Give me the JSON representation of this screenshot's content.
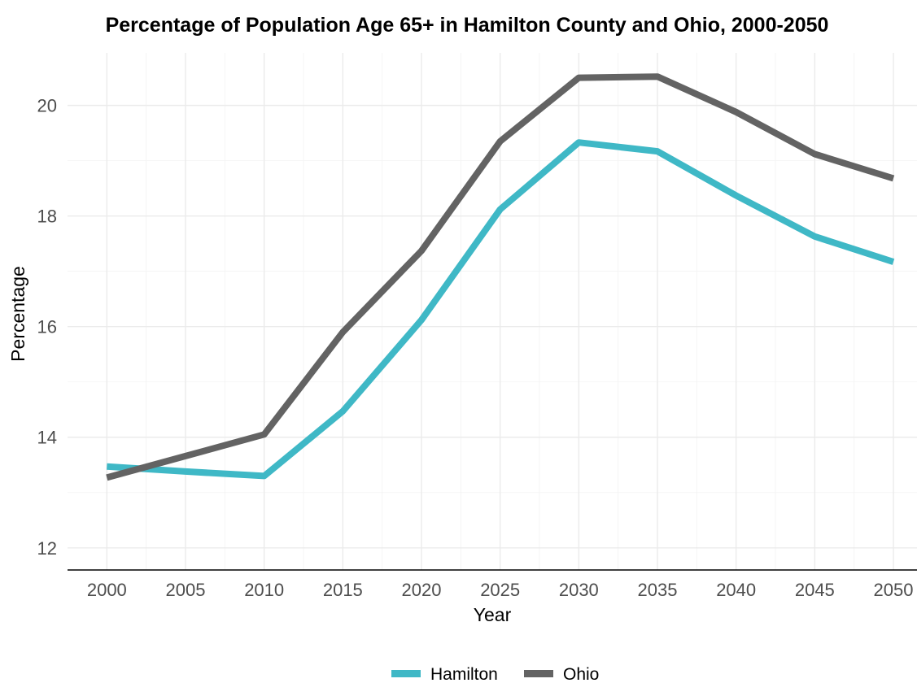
{
  "chart_data": {
    "type": "line",
    "title": "Percentage of Population Age 65+ in Hamilton County and Ohio, 2000-2050",
    "xlabel": "Year",
    "ylabel": "Percentage",
    "x": [
      2000,
      2005,
      2010,
      2015,
      2020,
      2025,
      2030,
      2035,
      2040,
      2045,
      2050
    ],
    "xlim": [
      1997.5,
      2051.5
    ],
    "ylim": [
      11.6,
      20.95
    ],
    "x_ticks": [
      "2000",
      "2005",
      "2010",
      "2015",
      "2020",
      "2025",
      "2030",
      "2035",
      "2040",
      "2045",
      "2050"
    ],
    "y_ticks": [
      "12",
      "14",
      "16",
      "18",
      "20"
    ],
    "grid": true,
    "legend_position": "bottom",
    "series": [
      {
        "name": "Hamilton",
        "color": "#3FB8C6",
        "values": [
          13.47,
          13.38,
          13.3,
          14.47,
          16.12,
          18.12,
          19.33,
          19.17,
          18.37,
          17.63,
          17.17
        ]
      },
      {
        "name": "Ohio",
        "color": "#636363",
        "values": [
          13.27,
          13.66,
          14.05,
          15.9,
          17.37,
          19.35,
          20.5,
          20.52,
          19.88,
          19.12,
          18.68
        ]
      }
    ]
  }
}
